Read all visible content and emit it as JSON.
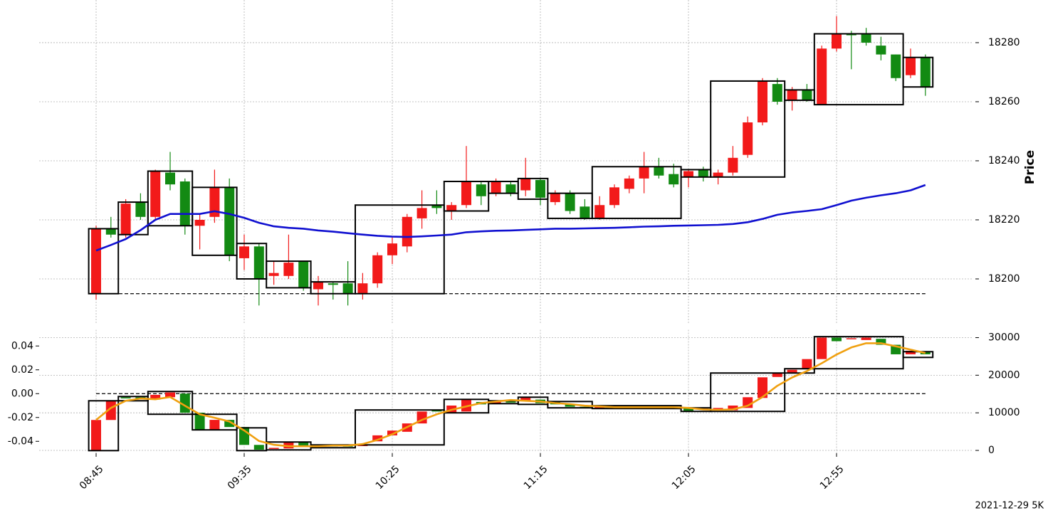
{
  "chart_data": [
    {
      "type": "candlestick",
      "ylabel": "Price",
      "open": [
        18195,
        18217,
        18215,
        18226,
        18221,
        18236,
        18233,
        18218,
        18221,
        18231,
        18207,
        18211,
        18201,
        18201,
        18206,
        18196.5,
        18198.5,
        18198.5,
        18195,
        18198.5,
        18208,
        18211,
        18220.5,
        18225,
        18223,
        18225,
        18232,
        18229,
        18232,
        18230,
        18233.5,
        18226,
        18229,
        18224.5,
        18220.5,
        18225,
        18230.5,
        18234,
        18238,
        18235.5,
        18234.5,
        18237,
        18234.5,
        18236,
        18242,
        18253,
        18266,
        18260.5,
        18264,
        18259,
        18278,
        18283,
        18283,
        18279,
        18276,
        18269,
        18275
      ],
      "high": [
        18218,
        18221,
        18227,
        18229,
        18237,
        18243,
        18234,
        18222,
        18237,
        18234,
        18215,
        18212,
        18206,
        18215,
        18206,
        18201,
        18199,
        18206,
        18202,
        18209,
        18214,
        18222,
        18230,
        18230,
        18226,
        18245,
        18233,
        18234,
        18233,
        18241,
        18234,
        18230,
        18230,
        18227,
        18228,
        18232,
        18235,
        18243,
        18241,
        18239,
        18237,
        18238,
        18237,
        18245,
        18255,
        18268,
        18268,
        18265,
        18266,
        18279,
        18289,
        18284,
        18285,
        18282,
        18276,
        18278,
        18276
      ],
      "low": [
        18193,
        18214,
        18214,
        18220,
        18220,
        18230,
        18215,
        18210,
        18219,
        18206,
        18203,
        18191,
        18198,
        18200,
        18196,
        18191,
        18193,
        18191,
        18193,
        18197,
        18205,
        18209,
        18217,
        18222,
        18220,
        18224,
        18225,
        18228,
        18228,
        18228,
        18225,
        18225,
        18222,
        18220,
        18220,
        18224,
        18229,
        18229,
        18234,
        18231,
        18231,
        18233,
        18232,
        18235,
        18241,
        18252,
        18259,
        18257,
        18260,
        18259,
        18277,
        18271,
        18279,
        18274,
        18267,
        18268,
        18262
      ],
      "close": [
        18217,
        18215,
        18225.5,
        18221,
        18236.5,
        18232,
        18218,
        18220,
        18231,
        18208,
        18211,
        18200,
        18202,
        18205.5,
        18197,
        18199,
        18198,
        18195,
        18198.5,
        18208,
        18212,
        18221,
        18224,
        18224,
        18225,
        18233,
        18228,
        18233,
        18229,
        18234,
        18227.5,
        18229,
        18223,
        18220.5,
        18225,
        18231,
        18234,
        18238,
        18235,
        18232,
        18236.5,
        18234.5,
        18236,
        18241,
        18253,
        18267,
        18260,
        18264,
        18260.5,
        18278,
        18283,
        18282.5,
        18280,
        18276,
        18268,
        18275,
        18265
      ],
      "up_color": "#f21a1a",
      "down_color": "#138a13",
      "boxes": [
        {
          "start": 0,
          "end": 1,
          "low": 18195,
          "high": 18217
        },
        {
          "start": 2,
          "end": 3,
          "low": 18215,
          "high": 18226
        },
        {
          "start": 4,
          "end": 6,
          "low": 18218,
          "high": 18236.5
        },
        {
          "start": 7,
          "end": 9,
          "low": 18208,
          "high": 18231
        },
        {
          "start": 10,
          "end": 11,
          "low": 18200,
          "high": 18212
        },
        {
          "start": 12,
          "end": 14,
          "low": 18197,
          "high": 18206
        },
        {
          "start": 15,
          "end": 17,
          "low": 18195,
          "high": 18199
        },
        {
          "start": 18,
          "end": 23,
          "low": 18195,
          "high": 18225
        },
        {
          "start": 24,
          "end": 26,
          "low": 18223,
          "high": 18233
        },
        {
          "start": 27,
          "end": 28,
          "low": 18229,
          "high": 18233
        },
        {
          "start": 29,
          "end": 30,
          "low": 18227,
          "high": 18234
        },
        {
          "start": 31,
          "end": 33,
          "low": 18220.5,
          "high": 18229
        },
        {
          "start": 34,
          "end": 39,
          "low": 18220.5,
          "high": 18238
        },
        {
          "start": 40,
          "end": 41,
          "low": 18234.5,
          "high": 18237
        },
        {
          "start": 42,
          "end": 46,
          "low": 18234.5,
          "high": 18267
        },
        {
          "start": 47,
          "end": 48,
          "low": 18260.5,
          "high": 18264
        },
        {
          "start": 49,
          "end": 54,
          "low": 18259,
          "high": 18283
        },
        {
          "start": 55,
          "end": 56,
          "low": 18265,
          "high": 18275
        }
      ],
      "box_color": "#000000",
      "hline": 18195,
      "lines": [
        {
          "color": "#1010d0",
          "values": [
            18209.6,
            18211.5,
            18213.5,
            18216.5,
            18220,
            18222,
            18222,
            18222,
            18222.9,
            18222,
            18220.7,
            18219,
            18217.8,
            18217.3,
            18217,
            18216.4,
            18216,
            18215.5,
            18215,
            18214.6,
            18214.3,
            18214.2,
            18214.4,
            18214.7,
            18215,
            18215.8,
            18216.1,
            18216.3,
            18216.4,
            18216.6,
            18216.8,
            18217,
            18217,
            18217.1,
            18217.2,
            18217.3,
            18217.5,
            18217.7,
            18217.8,
            18218,
            18218.1,
            18218.2,
            18218.3,
            18218.6,
            18219.2,
            18220.3,
            18221.7,
            18222.5,
            18223,
            18223.6,
            18225,
            18226.5,
            18227.5,
            18228.3,
            18229,
            18230,
            18231.8
          ]
        }
      ],
      "ylim": [
        18185,
        18293
      ],
      "yticks": [
        18200,
        18220,
        18240,
        18260,
        18280
      ],
      "grid": true
    },
    {
      "type": "candlestick",
      "categories": [
        "08:45",
        null,
        null,
        null,
        null,
        null,
        null,
        null,
        null,
        null,
        "09:35",
        null,
        null,
        null,
        null,
        null,
        null,
        null,
        null,
        null,
        "10:25",
        null,
        null,
        null,
        null,
        null,
        null,
        null,
        null,
        null,
        "11:15",
        null,
        null,
        null,
        null,
        null,
        null,
        null,
        null,
        null,
        "12:05",
        null,
        null,
        null,
        null,
        null,
        null,
        null,
        null,
        null,
        "12:55",
        null,
        null,
        null,
        null,
        null,
        null
      ],
      "open": [
        -0.0478,
        -0.0221,
        -0.003,
        -0.003,
        -0.005,
        -0.003,
        0,
        -0.016,
        -0.03,
        -0.022,
        -0.028,
        -0.043,
        -0.046,
        -0.046,
        -0.041,
        -0.0445,
        -0.0435,
        -0.0435,
        -0.044,
        -0.04,
        -0.035,
        -0.032,
        -0.025,
        -0.014,
        -0.016,
        -0.015,
        -0.007,
        -0.008,
        -0.0065,
        -0.006,
        -0.005,
        -0.007,
        -0.009,
        -0.011,
        -0.012,
        -0.011,
        -0.0105,
        -0.011,
        -0.0105,
        -0.011,
        -0.012,
        -0.013,
        -0.013,
        -0.014,
        -0.012,
        -0.0036,
        0.014,
        0.0175,
        0.021,
        0.029,
        0.047,
        0.046,
        0.045,
        0.046,
        0.041,
        0.033,
        0.0355
      ],
      "close": [
        -0.0221,
        -0.006,
        -0.004,
        -0.0045,
        -0.001,
        0.001,
        -0.016,
        -0.03,
        -0.022,
        -0.028,
        -0.043,
        -0.047,
        -0.0455,
        -0.041,
        -0.044,
        -0.0435,
        -0.044,
        -0.0445,
        -0.043,
        -0.035,
        -0.031,
        -0.025,
        -0.015,
        -0.015,
        -0.01,
        -0.005,
        -0.009,
        -0.006,
        -0.0075,
        -0.003,
        -0.008,
        -0.009,
        -0.011,
        -0.012,
        -0.0105,
        -0.01,
        -0.011,
        -0.01,
        -0.0115,
        -0.012,
        -0.0145,
        -0.0125,
        -0.012,
        -0.01,
        -0.003,
        0.0137,
        0.017,
        0.02,
        0.029,
        0.047,
        0.044,
        0.0465,
        0.047,
        0.041,
        0.033,
        0.036,
        0.033
      ],
      "up_color": "#f21a1a",
      "down_color": "#138a13",
      "boxes": [
        {
          "start": 0,
          "end": 1,
          "low": -0.0478,
          "high": -0.006
        },
        {
          "start": 2,
          "end": 3,
          "low": -0.006,
          "high": -0.0024
        },
        {
          "start": 4,
          "end": 6,
          "low": -0.0173,
          "high": 0.0018
        },
        {
          "start": 7,
          "end": 9,
          "low": -0.0304,
          "high": -0.0173
        },
        {
          "start": 10,
          "end": 11,
          "low": -0.0478,
          "high": -0.0287
        },
        {
          "start": 12,
          "end": 14,
          "low": -0.0472,
          "high": -0.0406
        },
        {
          "start": 15,
          "end": 17,
          "low": -0.0454,
          "high": -0.043
        },
        {
          "start": 18,
          "end": 23,
          "low": -0.043,
          "high": -0.0137
        },
        {
          "start": 24,
          "end": 26,
          "low": -0.0161,
          "high": -0.0048
        },
        {
          "start": 27,
          "end": 28,
          "low": -0.0084,
          "high": -0.006
        },
        {
          "start": 29,
          "end": 30,
          "low": -0.009,
          "high": -0.003
        },
        {
          "start": 31,
          "end": 33,
          "low": -0.0119,
          "high": -0.0066
        },
        {
          "start": 34,
          "end": 39,
          "low": -0.0125,
          "high": -0.0101
        },
        {
          "start": 40,
          "end": 41,
          "low": -0.0149,
          "high": -0.0119
        },
        {
          "start": 42,
          "end": 46,
          "low": -0.0149,
          "high": 0.0173
        },
        {
          "start": 47,
          "end": 48,
          "low": 0.0173,
          "high": 0.0209
        },
        {
          "start": 49,
          "end": 54,
          "low": 0.0209,
          "high": 0.0478
        },
        {
          "start": 55,
          "end": 56,
          "low": 0.0304,
          "high": 0.0352
        }
      ],
      "box_color": "#000000",
      "hline": 0,
      "lines": [
        {
          "color": "#f0a010",
          "axis": "y2",
          "values": [
            8100,
            11300,
            13200,
            13800,
            13600,
            14200,
            11900,
            9600,
            8700,
            7700,
            5300,
            2500,
            1500,
            1100,
            1100,
            1100,
            1300,
            1300,
            1700,
            2800,
            4300,
            6200,
            8100,
            9600,
            10800,
            11700,
            12600,
            13000,
            13400,
            13200,
            13000,
            12600,
            12300,
            11900,
            11700,
            11500,
            11500,
            11500,
            11500,
            11500,
            11300,
            10900,
            10800,
            10900,
            11900,
            14200,
            17200,
            19400,
            21100,
            23200,
            25500,
            27400,
            28500,
            28500,
            27700,
            26800,
            25900
          ]
        }
      ],
      "ylim": [
        -0.05,
        0.05
      ],
      "yticks": [
        -0.04,
        -0.02,
        {
          "value": 0,
          "label": "0.00"
        },
        0.02,
        0.04
      ],
      "y2lim": [
        -750,
        30950
      ],
      "y2ticks": [
        0,
        10000,
        20000,
        30000
      ],
      "grid": true,
      "footnote": "2021-12-29 5K"
    }
  ]
}
